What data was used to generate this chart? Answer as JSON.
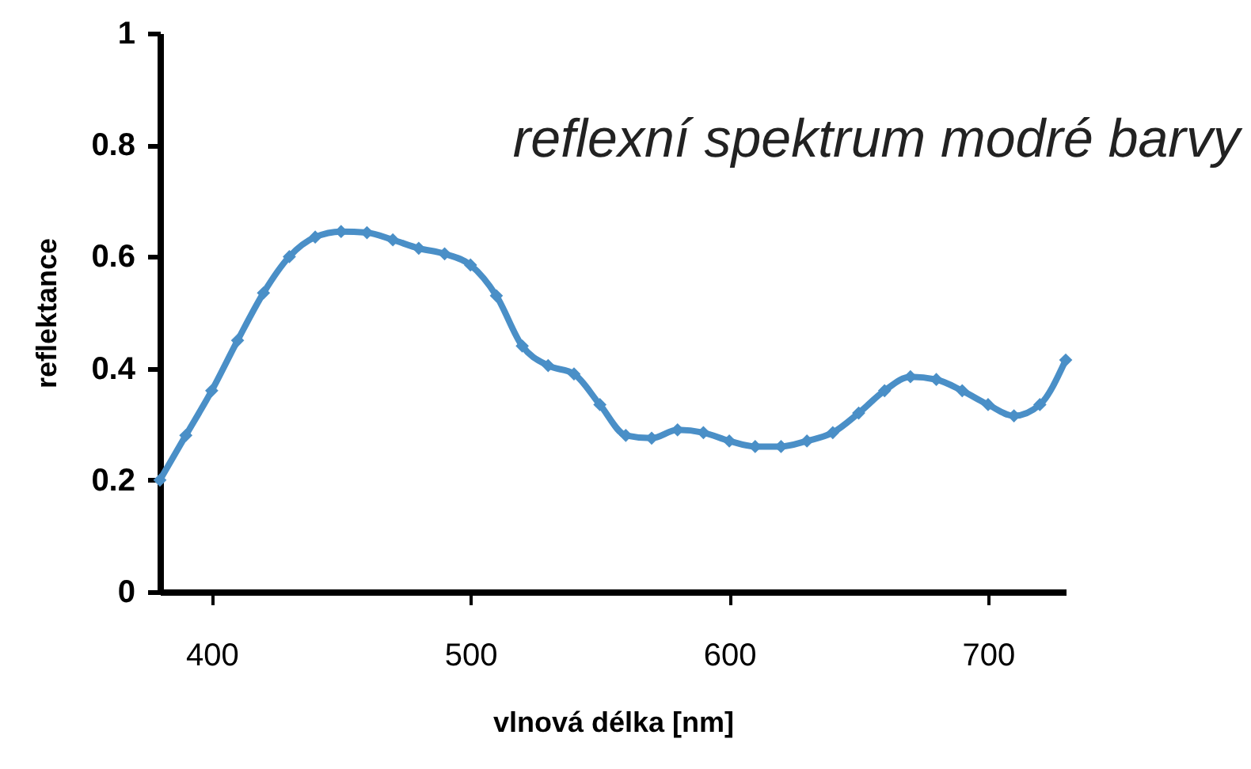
{
  "chart_data": {
    "type": "line",
    "title": "reflexní spektrum modré barvy",
    "xlabel": "vlnová délka [nm]",
    "ylabel": "reflektance",
    "x": [
      380,
      390,
      400,
      410,
      420,
      430,
      440,
      450,
      460,
      470,
      480,
      490,
      500,
      510,
      520,
      530,
      540,
      550,
      560,
      570,
      580,
      590,
      600,
      610,
      620,
      630,
      640,
      650,
      660,
      670,
      680,
      690,
      700,
      710,
      720,
      730
    ],
    "series": [
      {
        "color": "#4a8fc7",
        "values": [
          0.2,
          0.28,
          0.36,
          0.45,
          0.535,
          0.6,
          0.635,
          0.645,
          0.643,
          0.63,
          0.615,
          0.605,
          0.585,
          0.53,
          0.44,
          0.405,
          0.39,
          0.335,
          0.28,
          0.275,
          0.29,
          0.285,
          0.27,
          0.26,
          0.26,
          0.27,
          0.285,
          0.32,
          0.36,
          0.385,
          0.38,
          0.36,
          0.335,
          0.315,
          0.335,
          0.415
        ]
      }
    ],
    "xlim": [
      380,
      730
    ],
    "xticks": [
      400,
      500,
      600,
      700
    ],
    "ylim": [
      0,
      1
    ],
    "yticks": [
      0,
      0.2,
      0.4,
      0.6,
      0.8,
      1
    ],
    "grid": false,
    "marker": "diamond",
    "line_style": "solid"
  }
}
